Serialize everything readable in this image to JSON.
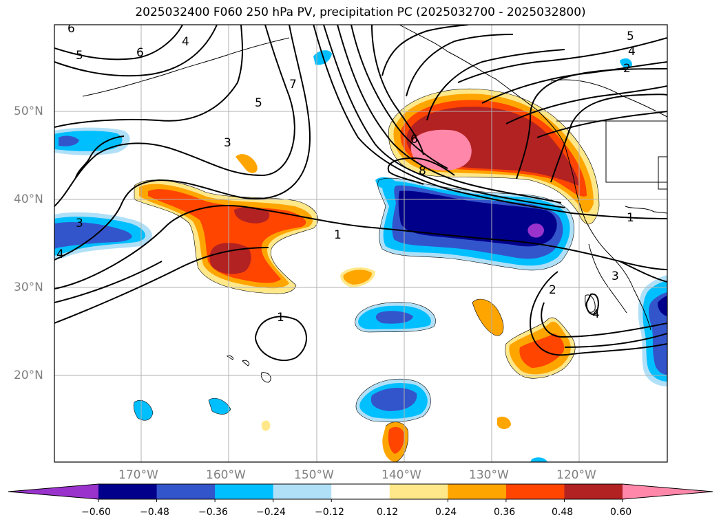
{
  "title": "2025032400 F060 250 hPa PV, precipitation PC (2025032700 - 2025032800)",
  "lat_labels": [
    "50°N",
    "40°N",
    "30°N",
    "20°N"
  ],
  "lon_labels": [
    "170°W",
    "160°W",
    "150°W",
    "140°W",
    "130°W",
    "120°W"
  ],
  "colorbar": {
    "tick_labels": [
      "−0.60",
      "−0.48",
      "−0.36",
      "−0.24",
      "−0.12",
      "0.12",
      "0.24",
      "0.36",
      "0.48",
      "0.60"
    ],
    "colors": [
      "#9933cc",
      "#00008b",
      "#3355cc",
      "#00bfff",
      "#b0e0f8",
      "#ffffff",
      "#ffe88a",
      "#ffa500",
      "#ff4500",
      "#b22222",
      "#ff88aa"
    ]
  },
  "contour_labels": [
    "6",
    "5",
    "6",
    "4",
    "7",
    "5",
    "3",
    "1",
    "3",
    "4",
    "1",
    "6",
    "8",
    "5",
    "4",
    "2",
    "1",
    "2",
    "3",
    "4"
  ]
}
